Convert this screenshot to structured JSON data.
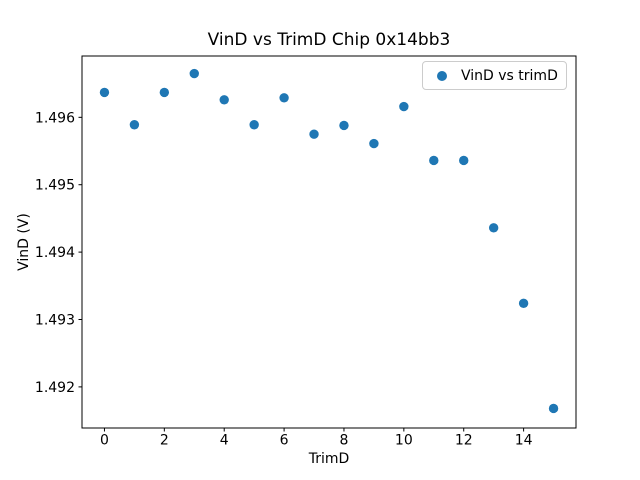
{
  "figure": {
    "background": "#ffffff",
    "frame_color": "#000000"
  },
  "chart_data": {
    "type": "scatter",
    "title": "VinD vs TrimD Chip 0x14bb3",
    "xlabel": "TrimD",
    "ylabel": "VinD (V)",
    "legend": {
      "label": "VinD vs trimD",
      "position": "upper right"
    },
    "marker_color": "#1f77b4",
    "marker_shape": "circle",
    "grid": false,
    "x": [
      0,
      1,
      2,
      3,
      4,
      5,
      6,
      7,
      8,
      9,
      10,
      11,
      12,
      13,
      14,
      15
    ],
    "y": [
      1.49637,
      1.49589,
      1.49637,
      1.49665,
      1.49626,
      1.49589,
      1.49629,
      1.49575,
      1.49588,
      1.49561,
      1.49616,
      1.49536,
      1.49536,
      1.49436,
      1.49324,
      1.49168
    ],
    "xlim": [
      -0.75,
      15.75
    ],
    "ylim": [
      1.49139,
      1.49691
    ],
    "xticks": [
      0,
      2,
      4,
      6,
      8,
      10,
      12,
      14
    ],
    "xtick_labels": [
      "0",
      "2",
      "4",
      "6",
      "8",
      "10",
      "12",
      "14"
    ],
    "yticks": [
      1.492,
      1.493,
      1.494,
      1.495,
      1.496
    ],
    "ytick_labels": [
      "1.492",
      "1.493",
      "1.494",
      "1.495",
      "1.496"
    ]
  }
}
